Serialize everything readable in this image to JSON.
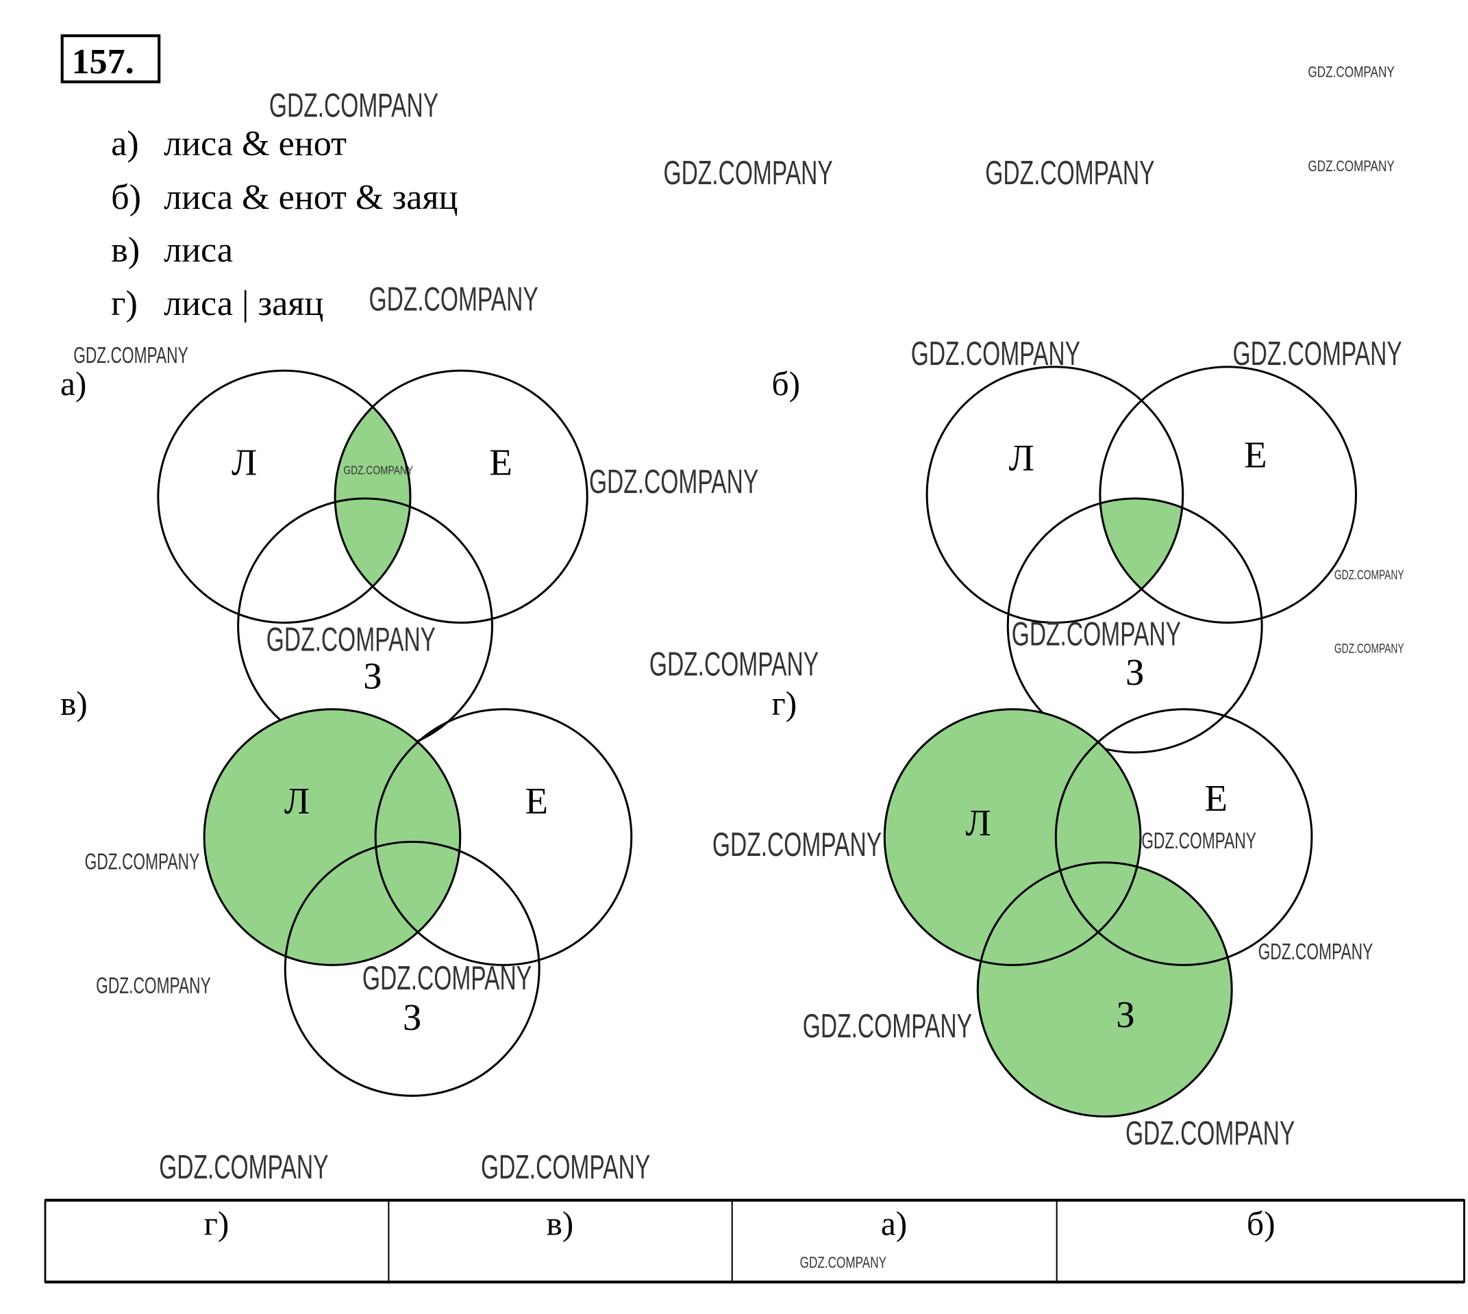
{
  "problem_number": "157.",
  "queries": [
    {
      "label": "а)",
      "text": "лиса & енот"
    },
    {
      "label": "б)",
      "text": "лиса & енот & заяц"
    },
    {
      "label": "в)",
      "text": "лиса"
    },
    {
      "label": "г)",
      "text": "лиса | заяц"
    }
  ],
  "diagrams": [
    {
      "label": "а)",
      "sets": [
        "Л",
        "Е",
        "З"
      ],
      "shaded": "Л ∩ Е"
    },
    {
      "label": "б)",
      "sets": [
        "Л",
        "Е",
        "З"
      ],
      "shaded": "Л ∩ Е ∩ З"
    },
    {
      "label": "в)",
      "sets": [
        "Л",
        "Е",
        "З"
      ],
      "shaded": "Л"
    },
    {
      "label": "г)",
      "sets": [
        "Л",
        "Е",
        "З"
      ],
      "shaded": "Л ∪ З"
    }
  ],
  "answer_table": [
    "г)",
    "в)",
    "а)",
    "б)"
  ],
  "colors": {
    "shade": "#95d38b",
    "stroke": "#000000"
  },
  "watermark": "GDZ.COMPANY"
}
